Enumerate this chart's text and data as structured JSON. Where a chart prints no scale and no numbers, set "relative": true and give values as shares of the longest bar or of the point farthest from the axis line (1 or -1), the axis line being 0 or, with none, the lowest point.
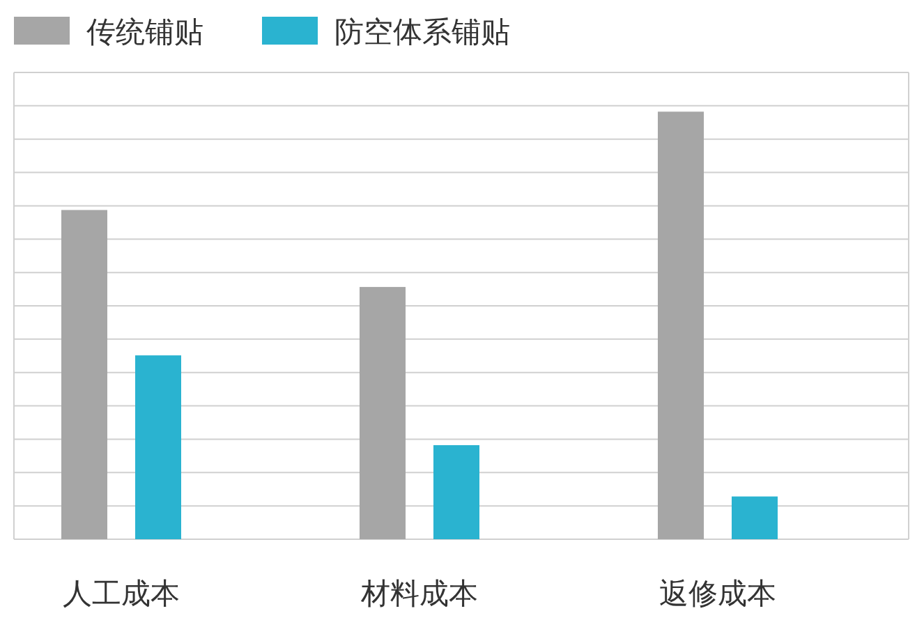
{
  "chart_data": {
    "type": "bar",
    "relative": true,
    "grid": "y",
    "legend": "top left",
    "categories": [
      "人工成本",
      "材料成本",
      "返修成本"
    ],
    "series": [
      {
        "name": "传统铺贴",
        "color": "#a6a6a6",
        "values": [
          0.77,
          0.59,
          1
        ]
      },
      {
        "name": "防空体系铺贴",
        "color": "#2ab3d0",
        "values": [
          0.43,
          0.22,
          0.1
        ]
      }
    ]
  }
}
